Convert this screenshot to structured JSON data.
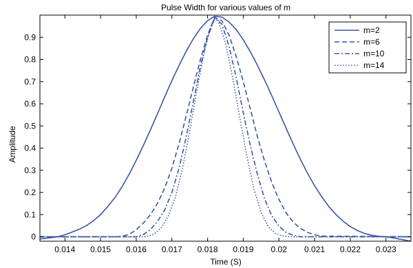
{
  "chart_data": {
    "type": "line",
    "title": "Pulse Width for various values of m",
    "xlabel": "Time (S)",
    "ylabel": "Amplitude",
    "xlim": [
      0.0133,
      0.0237
    ],
    "ylim": [
      -0.02,
      1.0
    ],
    "xticks": [
      0.014,
      0.015,
      0.016,
      0.017,
      0.018,
      0.019,
      0.02,
      0.021,
      0.022,
      0.023
    ],
    "xtick_labels": [
      "0.014",
      "0.015",
      "0.016",
      "0.017",
      "0.018",
      "0.019",
      "0.02",
      "0.021",
      "0.022",
      "0.023"
    ],
    "yticks": [
      0,
      0.1,
      0.2,
      0.3,
      0.4,
      0.5,
      0.6,
      0.7,
      0.8,
      0.9
    ],
    "ytick_labels": [
      "0",
      "0.1",
      "0.2",
      "0.3",
      "0.4",
      "0.5",
      "0.6",
      "0.7",
      "0.8",
      "0.9"
    ],
    "grid": false,
    "legend_position": "top-right",
    "line_color": "#3a55a4",
    "series": [
      {
        "name": "m=2",
        "dash": "solid",
        "x": [
          0.0133,
          0.0138,
          0.014,
          0.0142,
          0.0144,
          0.0146,
          0.0148,
          0.015,
          0.0152,
          0.0154,
          0.0156,
          0.0158,
          0.016,
          0.0162,
          0.0164,
          0.0166,
          0.0168,
          0.017,
          0.0172,
          0.0174,
          0.0176,
          0.0178,
          0.018,
          0.0182,
          0.0184,
          0.0186,
          0.0188,
          0.019,
          0.0192,
          0.0194,
          0.0196,
          0.0198,
          0.02,
          0.0202,
          0.0204,
          0.0206,
          0.0208,
          0.021,
          0.0212,
          0.0214,
          0.0216,
          0.0218,
          0.022,
          0.0222,
          0.0224,
          0.0226,
          0.0228,
          0.023,
          0.0232,
          0.0237
        ],
        "y": [
          -0.01,
          0.0,
          0.009,
          0.021,
          0.034,
          0.05,
          0.072,
          0.1,
          0.136,
          0.176,
          0.225,
          0.282,
          0.345,
          0.412,
          0.483,
          0.557,
          0.632,
          0.705,
          0.773,
          0.837,
          0.893,
          0.94,
          0.975,
          0.995,
          0.991,
          0.969,
          0.935,
          0.889,
          0.834,
          0.773,
          0.706,
          0.636,
          0.563,
          0.49,
          0.418,
          0.35,
          0.287,
          0.23,
          0.18,
          0.136,
          0.1,
          0.07,
          0.046,
          0.028,
          0.015,
          0.007,
          0.002,
          0.0,
          -0.005,
          -0.02
        ]
      },
      {
        "name": "m=6",
        "dash": "dashed",
        "x": [
          0.0133,
          0.0155,
          0.0158,
          0.016,
          0.0162,
          0.0164,
          0.0166,
          0.0168,
          0.017,
          0.0172,
          0.0174,
          0.0176,
          0.0178,
          0.018,
          0.0182,
          0.0184,
          0.0186,
          0.0188,
          0.019,
          0.0192,
          0.0194,
          0.0196,
          0.0198,
          0.02,
          0.0202,
          0.0204,
          0.0206,
          0.0208,
          0.021,
          0.0212,
          0.0237
        ],
        "y": [
          0.0,
          0.0,
          0.01,
          0.032,
          0.062,
          0.1,
          0.152,
          0.22,
          0.31,
          0.42,
          0.545,
          0.675,
          0.8,
          0.91,
          0.99,
          0.975,
          0.91,
          0.815,
          0.7,
          0.575,
          0.45,
          0.34,
          0.245,
          0.168,
          0.108,
          0.066,
          0.038,
          0.02,
          0.009,
          0.003,
          0.0
        ]
      },
      {
        "name": "m=10",
        "dash": "dashdot",
        "x": [
          0.0133,
          0.016,
          0.0162,
          0.0164,
          0.0166,
          0.0168,
          0.017,
          0.0172,
          0.0174,
          0.0176,
          0.0178,
          0.018,
          0.0182,
          0.0184,
          0.0186,
          0.0188,
          0.019,
          0.0192,
          0.0194,
          0.0196,
          0.0198,
          0.02,
          0.0202,
          0.0204,
          0.0206,
          0.0237
        ],
        "y": [
          0.0,
          0.0,
          0.01,
          0.033,
          0.07,
          0.122,
          0.2,
          0.31,
          0.45,
          0.61,
          0.77,
          0.9,
          0.985,
          0.96,
          0.86,
          0.72,
          0.56,
          0.41,
          0.28,
          0.17,
          0.095,
          0.048,
          0.02,
          0.007,
          0.0,
          0.0
        ]
      },
      {
        "name": "m=14",
        "dash": "dotted",
        "x": [
          0.0133,
          0.0163,
          0.0165,
          0.0167,
          0.0169,
          0.0171,
          0.0173,
          0.0175,
          0.0177,
          0.0179,
          0.0181,
          0.0182,
          0.0183,
          0.0185,
          0.0187,
          0.0189,
          0.0191,
          0.0193,
          0.0195,
          0.0197,
          0.0199,
          0.0201,
          0.0203,
          0.0237
        ],
        "y": [
          0.0,
          0.0,
          0.012,
          0.04,
          0.095,
          0.18,
          0.31,
          0.48,
          0.66,
          0.83,
          0.955,
          0.99,
          0.975,
          0.875,
          0.72,
          0.54,
          0.365,
          0.215,
          0.11,
          0.045,
          0.015,
          0.004,
          0.0,
          0.0
        ]
      }
    ]
  }
}
